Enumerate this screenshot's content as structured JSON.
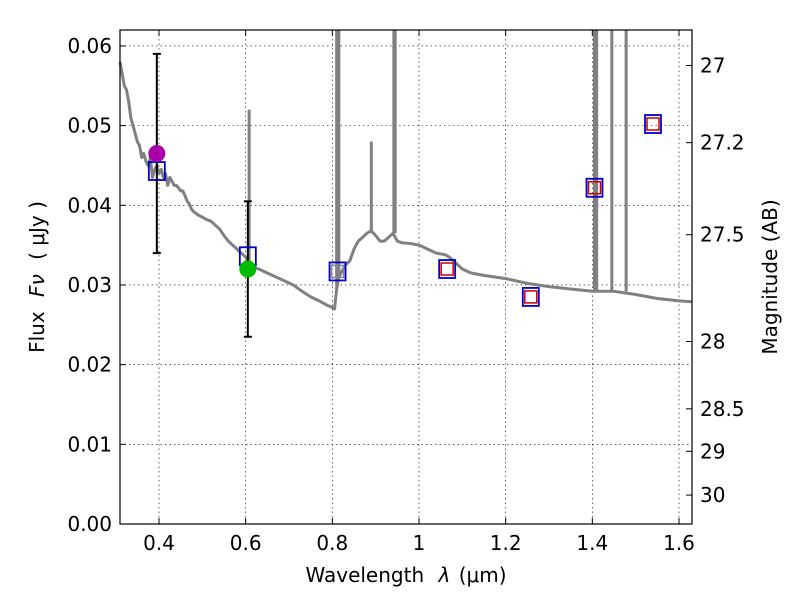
{
  "chart_data": {
    "type": "scatter",
    "x_axis": {
      "label_prefix": "Wavelength",
      "label_symbol": "λ",
      "label_unit": "(μm)",
      "range": [
        0.31,
        1.63
      ],
      "ticks": [
        0.4,
        0.6,
        0.8,
        1.0,
        1.2,
        1.4,
        1.6
      ],
      "tick_labels": [
        "0.4",
        "0.6",
        "0.8",
        "1",
        "1.2",
        "1.4",
        "1.6"
      ]
    },
    "y_axis": {
      "label_prefix": "Flux",
      "label_symbol": "Fν",
      "label_unit": "( μJy )",
      "range": [
        0.0,
        0.062
      ],
      "ticks": [
        0.0,
        0.01,
        0.02,
        0.03,
        0.04,
        0.05,
        0.06
      ],
      "tick_labels": [
        "0.00",
        "0.01",
        "0.02",
        "0.03",
        "0.04",
        "0.05",
        "0.06"
      ]
    },
    "y2_axis": {
      "label": "Magnitude (AB)",
      "ticks": [
        27.0,
        27.2,
        27.5,
        28.0,
        28.5,
        29.0,
        30.0
      ],
      "tick_labels": [
        "27",
        "27.2",
        "27.5",
        "28",
        "28.5",
        "29",
        "30"
      ]
    },
    "grid": true,
    "observed_points": [
      {
        "name": "observed-magenta",
        "x": 0.395,
        "y": 0.0465,
        "yerr_low": 0.034,
        "yerr_high": 0.059,
        "color": "#aa00aa"
      },
      {
        "name": "observed-green",
        "x": 0.605,
        "y": 0.032,
        "yerr_low": 0.0235,
        "yerr_high": 0.0405,
        "color": "#00bb00"
      }
    ],
    "model_band_fluxes": [
      {
        "x": 0.395,
        "y": 0.0443,
        "color": "#0000cc"
      },
      {
        "x": 0.605,
        "y": 0.0336,
        "color": "#0000cc"
      },
      {
        "x": 0.812,
        "y": 0.0317,
        "color": "#0000cc"
      },
      {
        "x": 1.065,
        "y": 0.032,
        "color": "#0000cc"
      },
      {
        "x": 1.258,
        "y": 0.0285,
        "color": "#0000cc"
      },
      {
        "x": 1.405,
        "y": 0.0422,
        "color": "#0000cc"
      },
      {
        "x": 1.54,
        "y": 0.0502,
        "color": "#0000cc"
      }
    ],
    "inner_band_fluxes": [
      {
        "x": 0.812,
        "y": 0.0317,
        "color": "#888888"
      },
      {
        "x": 1.065,
        "y": 0.032,
        "color": "#cc0000"
      },
      {
        "x": 1.258,
        "y": 0.0285,
        "color": "#cc0000"
      },
      {
        "x": 1.405,
        "y": 0.0422,
        "color": "#cc0000"
      },
      {
        "x": 1.54,
        "y": 0.0502,
        "color": "#cc0000"
      }
    ],
    "sed_model": {
      "color": "#808080",
      "points": [
        [
          0.31,
          0.058
        ],
        [
          0.315,
          0.0565
        ],
        [
          0.32,
          0.055
        ],
        [
          0.325,
          0.0545
        ],
        [
          0.33,
          0.053
        ],
        [
          0.335,
          0.051
        ],
        [
          0.34,
          0.05
        ],
        [
          0.345,
          0.049
        ],
        [
          0.35,
          0.048
        ],
        [
          0.355,
          0.0475
        ],
        [
          0.36,
          0.046
        ],
        [
          0.365,
          0.0465
        ],
        [
          0.37,
          0.0455
        ],
        [
          0.375,
          0.045
        ],
        [
          0.38,
          0.046
        ],
        [
          0.385,
          0.0435
        ],
        [
          0.39,
          0.0445
        ],
        [
          0.395,
          0.045
        ],
        [
          0.4,
          0.044
        ],
        [
          0.405,
          0.0445
        ],
        [
          0.41,
          0.0435
        ],
        [
          0.415,
          0.044
        ],
        [
          0.42,
          0.0425
        ],
        [
          0.425,
          0.0435
        ],
        [
          0.43,
          0.043
        ],
        [
          0.435,
          0.0425
        ],
        [
          0.44,
          0.0425
        ],
        [
          0.445,
          0.0422
        ],
        [
          0.45,
          0.0418
        ],
        [
          0.455,
          0.0418
        ],
        [
          0.46,
          0.0412
        ],
        [
          0.465,
          0.0405
        ],
        [
          0.47,
          0.0402
        ],
        [
          0.475,
          0.0395
        ],
        [
          0.48,
          0.0392
        ],
        [
          0.485,
          0.039
        ],
        [
          0.49,
          0.0388
        ],
        [
          0.5,
          0.0385
        ],
        [
          0.51,
          0.0382
        ],
        [
          0.52,
          0.038
        ],
        [
          0.53,
          0.0375
        ],
        [
          0.54,
          0.037
        ],
        [
          0.55,
          0.0362
        ],
        [
          0.56,
          0.0355
        ],
        [
          0.57,
          0.035
        ],
        [
          0.58,
          0.0345
        ],
        [
          0.59,
          0.034
        ],
        [
          0.6,
          0.0335
        ],
        [
          0.605,
          0.033
        ],
        [
          0.61,
          0.0325
        ],
        [
          0.62,
          0.0322
        ],
        [
          0.63,
          0.032
        ],
        [
          0.65,
          0.0315
        ],
        [
          0.67,
          0.031
        ],
        [
          0.69,
          0.0305
        ],
        [
          0.71,
          0.03
        ],
        [
          0.73,
          0.0292
        ],
        [
          0.75,
          0.0285
        ],
        [
          0.77,
          0.028
        ],
        [
          0.79,
          0.0274
        ],
        [
          0.8,
          0.0272
        ],
        [
          0.805,
          0.027
        ],
        [
          0.81,
          0.0295
        ],
        [
          0.815,
          0.031
        ],
        [
          0.82,
          0.0315
        ],
        [
          0.83,
          0.0325
        ],
        [
          0.84,
          0.033
        ],
        [
          0.85,
          0.0345
        ],
        [
          0.86,
          0.0355
        ],
        [
          0.87,
          0.036
        ],
        [
          0.88,
          0.0365
        ],
        [
          0.89,
          0.0368
        ],
        [
          0.9,
          0.0362
        ],
        [
          0.91,
          0.0355
        ],
        [
          0.92,
          0.0355
        ],
        [
          0.93,
          0.036
        ],
        [
          0.94,
          0.0365
        ],
        [
          0.95,
          0.0355
        ],
        [
          0.96,
          0.0353
        ],
        [
          0.98,
          0.0352
        ],
        [
          1.0,
          0.035
        ],
        [
          1.02,
          0.0345
        ],
        [
          1.04,
          0.034
        ],
        [
          1.06,
          0.0338
        ],
        [
          1.07,
          0.0335
        ],
        [
          1.08,
          0.033
        ],
        [
          1.1,
          0.032
        ],
        [
          1.12,
          0.0315
        ],
        [
          1.15,
          0.0312
        ],
        [
          1.2,
          0.0308
        ],
        [
          1.25,
          0.0302
        ],
        [
          1.3,
          0.0298
        ],
        [
          1.35,
          0.0295
        ],
        [
          1.4,
          0.0292
        ],
        [
          1.45,
          0.0292
        ],
        [
          1.5,
          0.0288
        ],
        [
          1.55,
          0.0283
        ],
        [
          1.6,
          0.028
        ],
        [
          1.63,
          0.0279
        ]
      ],
      "spikes": [
        {
          "x": 0.608,
          "y": 0.052
        },
        {
          "x": 0.81,
          "y": 0.062
        },
        {
          "x": 0.815,
          "y": 0.062
        },
        {
          "x": 0.89,
          "y": 0.048
        },
        {
          "x": 0.942,
          "y": 0.062
        },
        {
          "x": 0.945,
          "y": 0.062
        },
        {
          "x": 1.405,
          "y": 0.062
        },
        {
          "x": 1.41,
          "y": 0.062
        },
        {
          "x": 1.445,
          "y": 0.062
        },
        {
          "x": 1.478,
          "y": 0.062
        }
      ]
    }
  }
}
